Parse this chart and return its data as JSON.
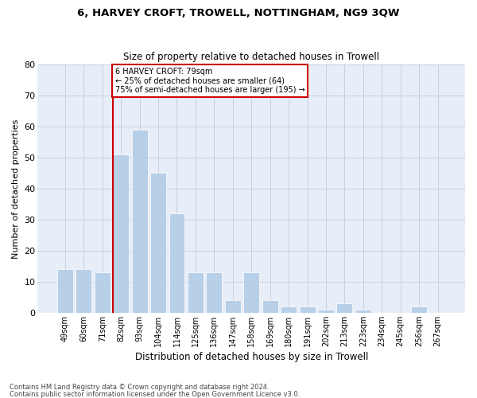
{
  "title1": "6, HARVEY CROFT, TROWELL, NOTTINGHAM, NG9 3QW",
  "title2": "Size of property relative to detached houses in Trowell",
  "xlabel": "Distribution of detached houses by size in Trowell",
  "ylabel": "Number of detached properties",
  "categories": [
    "49sqm",
    "60sqm",
    "71sqm",
    "82sqm",
    "93sqm",
    "104sqm",
    "114sqm",
    "125sqm",
    "136sqm",
    "147sqm",
    "158sqm",
    "169sqm",
    "180sqm",
    "191sqm",
    "202sqm",
    "213sqm",
    "223sqm",
    "234sqm",
    "245sqm",
    "256sqm",
    "267sqm"
  ],
  "values": [
    14,
    14,
    13,
    51,
    59,
    45,
    32,
    13,
    13,
    4,
    13,
    4,
    2,
    2,
    1,
    3,
    1,
    0,
    0,
    2,
    0
  ],
  "bar_color": "#b8cfe8",
  "grid_color": "#c8d0e0",
  "bg_color": "#e8eef8",
  "vline_color": "#cc0000",
  "vline_x_index": 3,
  "annotation_text": "6 HARVEY CROFT: 79sqm\n← 25% of detached houses are smaller (64)\n75% of semi-detached houses are larger (195) →",
  "annotation_box_color": "#cc0000",
  "ylim": [
    0,
    80
  ],
  "yticks": [
    0,
    10,
    20,
    30,
    40,
    50,
    60,
    70,
    80
  ],
  "footnote1": "Contains HM Land Registry data © Crown copyright and database right 2024.",
  "footnote2": "Contains public sector information licensed under the Open Government Licence v3.0."
}
